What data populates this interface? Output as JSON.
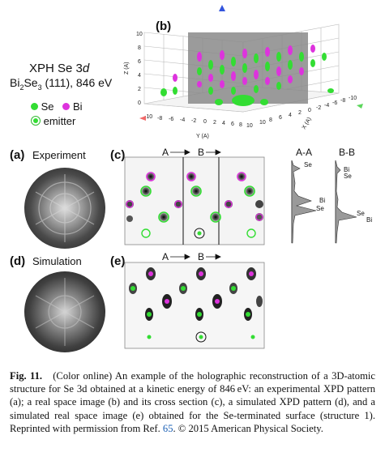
{
  "figure": {
    "title_main": "XPH Se 3",
    "title_italic": "d",
    "subtitle_prefix": "Bi",
    "subtitle_sub1": "2",
    "subtitle_mid": "Se",
    "subtitle_sub2": "3",
    "subtitle_suffix": " (111), 846 eV",
    "legend": {
      "se": "Se",
      "bi": "Bi",
      "emitter": "emitter",
      "se_color": "#33dd33",
      "bi_color": "#dd33dd"
    },
    "panels": {
      "a_label": "(a)",
      "a_name": "Experiment",
      "b_label": "(b)",
      "c_label": "(c)",
      "d_label": "(d)",
      "d_name": "Simulation",
      "e_label": "(e)"
    },
    "axes_3d": {
      "z_label": "Z (A)",
      "y_label": "Y (A)",
      "x_label": "X (A)",
      "z_ticks": [
        "10",
        "8",
        "6",
        "4",
        "2",
        "0"
      ],
      "y_ticks": [
        "-10",
        "-8",
        "-6",
        "-4",
        "-2",
        "0",
        "2",
        "4",
        "6",
        "8",
        "10"
      ],
      "x_ticks": [
        "10",
        "8",
        "6",
        "4",
        "2",
        "0",
        "-2",
        "-4",
        "-6",
        "-8",
        "-10"
      ]
    },
    "sections": {
      "a": "A",
      "b": "B",
      "aa": "A-A",
      "bb": "B-B"
    },
    "profile_labels": {
      "aa_se_top": "Se",
      "aa_bi": "Bi",
      "aa_se": "Se",
      "bb_bi": "Bi",
      "bb_se": "Se",
      "bb_se2": "Se",
      "bb_bi2": "Bi"
    }
  },
  "caption": {
    "fig_label": "Fig. 11.",
    "text1": "(Color online) An example of the holographic reconstruction of a 3D-atomic structure for Se 3d obtained at a kinetic energy of 846 eV: an experimental XPD pattern (a); a real space image (b) and its cross section (c), a simulated XPD pattern (d), and a simulated real space image (e) obtained for the Se-terminated surface (structure 1). Reprinted with permission from Ref. ",
    "ref": "65",
    "text2": ". © 2015 American Physical Society."
  }
}
